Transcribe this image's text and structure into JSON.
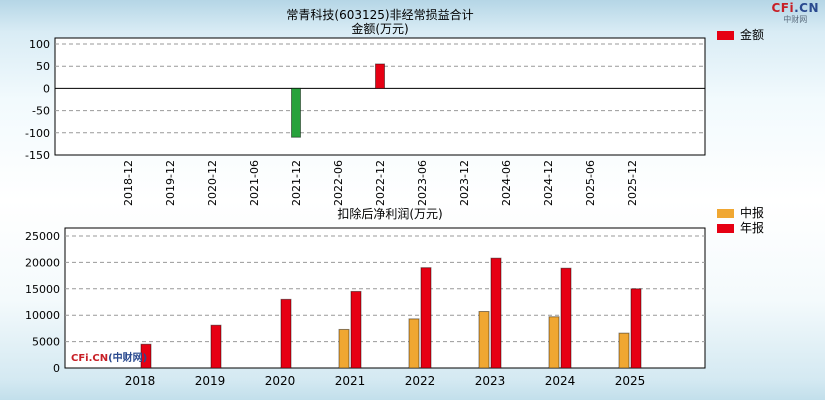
{
  "logo": {
    "cfi": "CFi",
    "cn": ".CN",
    "sub": "中财网"
  },
  "watermark": {
    "cfi": "CFi.CN",
    "rest": "(中财网)"
  },
  "chart_data": [
    {
      "type": "bar",
      "title": "常青科技(603125)非经常损益合计",
      "subtitle": "金额(万元)",
      "legend": [
        {
          "label": "金额",
          "color": "#e60013"
        }
      ],
      "legend_position": "right-top",
      "grid": "dashed-horizontal",
      "categories": [
        "2018-12",
        "2019-12",
        "2020-12",
        "2021-06",
        "2021-12",
        "2022-06",
        "2022-12",
        "2023-06",
        "2023-12",
        "2024-06",
        "2024-12",
        "2025-06",
        "2025-12"
      ],
      "series": [
        {
          "name": "金额",
          "values": [
            null,
            null,
            null,
            null,
            -110,
            null,
            55,
            null,
            null,
            null,
            null,
            null,
            null
          ]
        }
      ],
      "positive_color": "#e60013",
      "negative_color": "#28a23c",
      "ylim": [
        -150,
        100
      ],
      "yticks": [
        100,
        50,
        0,
        -50,
        -100,
        -150
      ],
      "xlabel": "",
      "ylabel": ""
    },
    {
      "type": "bar",
      "title": "扣除后净利润(万元)",
      "legend": [
        {
          "label": "中报",
          "color": "#f0a732"
        },
        {
          "label": "年报",
          "color": "#e60013"
        }
      ],
      "legend_position": "right-top",
      "grid": "dashed-horizontal",
      "categories": [
        "2018",
        "2019",
        "2020",
        "2021",
        "2022",
        "2023",
        "2024",
        "2025"
      ],
      "series": [
        {
          "name": "中报",
          "color": "#f0a732",
          "values": [
            null,
            null,
            null,
            7300,
            9300,
            10700,
            9700,
            6600
          ]
        },
        {
          "name": "年报",
          "color": "#e60013",
          "values": [
            4500,
            8100,
            13000,
            14500,
            19000,
            20800,
            18900,
            15000
          ]
        }
      ],
      "ylim": [
        0,
        25000
      ],
      "yticks": [
        25000,
        20000,
        15000,
        10000,
        5000,
        0
      ],
      "xlabel": "",
      "ylabel": ""
    }
  ]
}
